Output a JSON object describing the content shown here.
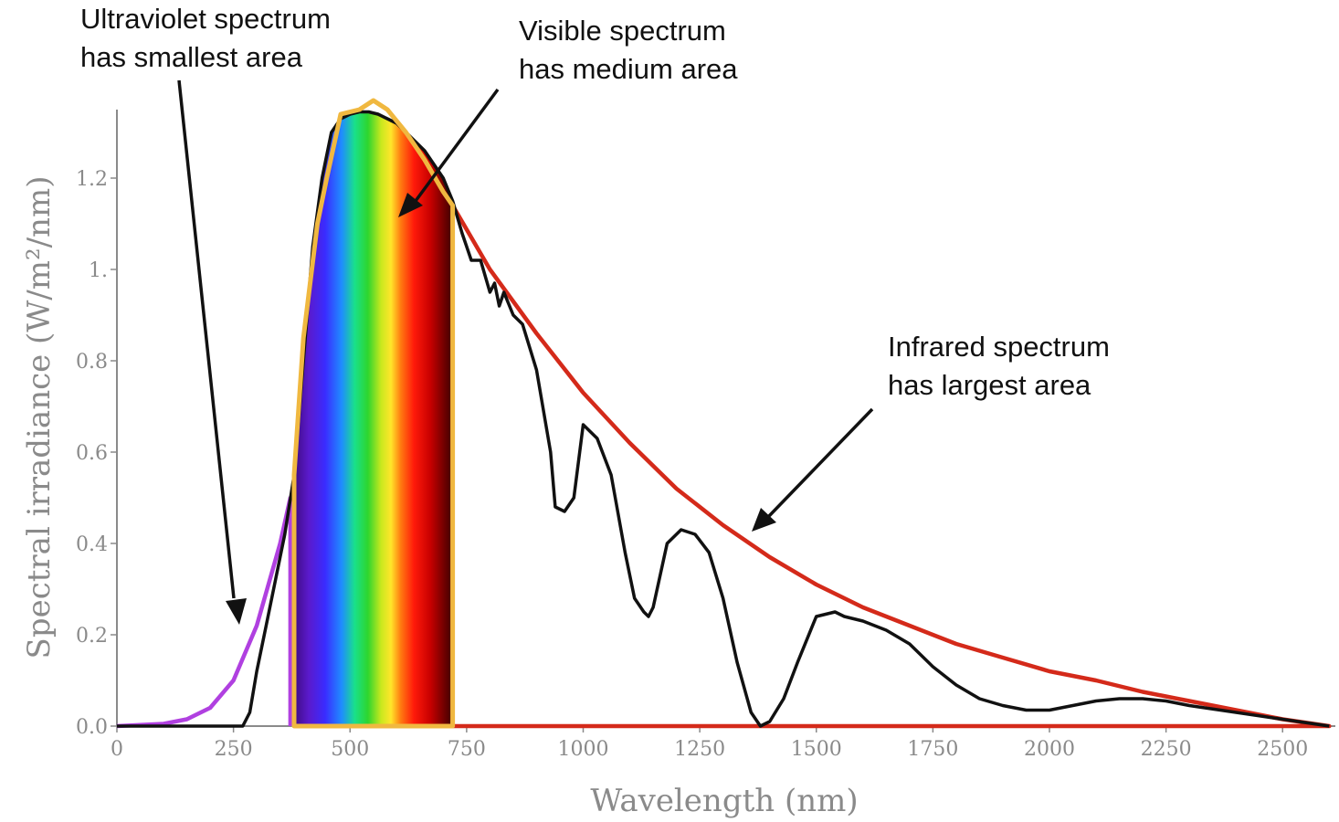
{
  "chart_data": {
    "type": "area",
    "title": "",
    "xlabel": "Wavelength (nm)",
    "ylabel": "Spectral irradiance (W/m²/nm)",
    "xlim": [
      0,
      2600
    ],
    "ylim": [
      0,
      1.35
    ],
    "x_ticks": [
      0,
      250,
      500,
      750,
      1000,
      1250,
      1500,
      1750,
      2000,
      2250,
      2500
    ],
    "y_ticks": [
      0.0,
      0.2,
      0.4,
      0.6,
      0.8,
      1.0,
      1.2
    ],
    "x_tick_labels": [
      "0",
      "250",
      "500",
      "750",
      "1000",
      "1250",
      "1500",
      "1750",
      "2000",
      "2250",
      "2500"
    ],
    "y_tick_labels": [
      "0.0",
      "0.2",
      "0.4",
      "0.6",
      "0.8",
      "1.",
      "1.2"
    ],
    "grid": false,
    "colors": {
      "ultraviolet": "#b040e0",
      "visible_outline": "#f0b840",
      "infrared": "#d42a1a",
      "measured": "#111111",
      "axis": "#8a8a8a"
    },
    "regions": [
      {
        "name": "ultraviolet",
        "x": [
          0,
          100,
          150,
          200,
          250,
          300,
          350,
          372,
          372
        ],
        "y": [
          0,
          0.005,
          0.015,
          0.04,
          0.1,
          0.22,
          0.4,
          0.5,
          0
        ]
      },
      {
        "name": "visible",
        "x": [
          380,
          380,
          400,
          430,
          450,
          480,
          520,
          550,
          580,
          620,
          660,
          700,
          720,
          720
        ],
        "y": [
          0,
          0.55,
          0.85,
          1.1,
          1.2,
          1.34,
          1.35,
          1.37,
          1.35,
          1.3,
          1.24,
          1.17,
          1.14,
          0
        ]
      },
      {
        "name": "infrared",
        "x": [
          720,
          800,
          900,
          1000,
          1100,
          1200,
          1300,
          1400,
          1500,
          1600,
          1700,
          1800,
          1900,
          2000,
          2100,
          2200,
          2300,
          2400,
          2500,
          2600
        ],
        "y": [
          1.14,
          1.0,
          0.86,
          0.73,
          0.62,
          0.52,
          0.44,
          0.37,
          0.31,
          0.26,
          0.22,
          0.18,
          0.15,
          0.12,
          0.1,
          0.075,
          0.055,
          0.035,
          0.015,
          0
        ]
      }
    ],
    "measured_series": {
      "x": [
        0,
        270,
        285,
        300,
        320,
        340,
        360,
        380,
        400,
        420,
        440,
        460,
        480,
        500,
        520,
        540,
        560,
        580,
        600,
        620,
        640,
        660,
        680,
        700,
        720,
        740,
        760,
        780,
        800,
        810,
        820,
        830,
        850,
        870,
        900,
        930,
        940,
        960,
        980,
        1000,
        1030,
        1060,
        1090,
        1110,
        1130,
        1140,
        1150,
        1180,
        1210,
        1240,
        1270,
        1300,
        1330,
        1360,
        1380,
        1400,
        1430,
        1460,
        1500,
        1540,
        1560,
        1600,
        1650,
        1700,
        1750,
        1800,
        1850,
        1900,
        1950,
        2000,
        2050,
        2100,
        2150,
        2200,
        2250,
        2300,
        2400,
        2500,
        2600
      ],
      "y": [
        0,
        0,
        0.03,
        0.12,
        0.22,
        0.32,
        0.42,
        0.55,
        0.8,
        1.05,
        1.2,
        1.3,
        1.33,
        1.34,
        1.345,
        1.345,
        1.34,
        1.33,
        1.32,
        1.3,
        1.28,
        1.26,
        1.23,
        1.2,
        1.15,
        1.08,
        1.02,
        1.02,
        0.95,
        0.97,
        0.92,
        0.95,
        0.9,
        0.88,
        0.78,
        0.6,
        0.48,
        0.47,
        0.5,
        0.66,
        0.63,
        0.55,
        0.38,
        0.28,
        0.25,
        0.24,
        0.26,
        0.4,
        0.43,
        0.42,
        0.38,
        0.28,
        0.14,
        0.03,
        0.0,
        0.01,
        0.06,
        0.14,
        0.24,
        0.25,
        0.24,
        0.23,
        0.21,
        0.18,
        0.13,
        0.09,
        0.06,
        0.045,
        0.035,
        0.035,
        0.045,
        0.055,
        0.06,
        0.06,
        0.055,
        0.045,
        0.03,
        0.015,
        0
      ]
    },
    "annotations": [
      {
        "id": "uv",
        "lines": [
          "Ultraviolet spectrum",
          "has smallest area"
        ]
      },
      {
        "id": "vis",
        "lines": [
          "Visible spectrum",
          "has medium area"
        ]
      },
      {
        "id": "ir",
        "lines": [
          "Infrared spectrum",
          "has largest area"
        ]
      }
    ]
  }
}
